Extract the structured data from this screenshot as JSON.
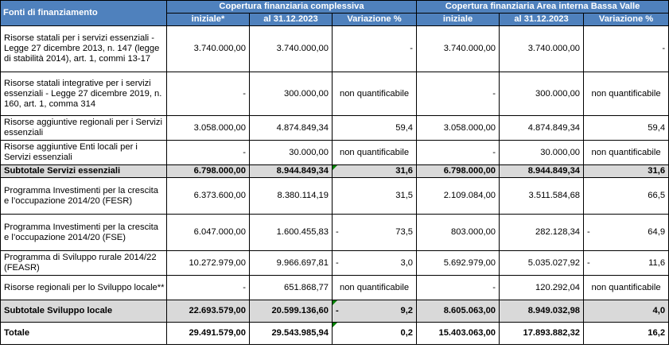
{
  "header": {
    "fonti": "Fonti di finanziamento",
    "group1": "Copertura finanziaria complessiva",
    "group2": "Copertura finanziaria Area interna Bassa Valle",
    "col_iniziale": "iniziale*",
    "col_al": "al 31.12.2023",
    "col_var": "Variazione %",
    "col_iniziale2": "iniziale",
    "col_al2": "al 31.12.2023",
    "col_var2": "Variazione %"
  },
  "rows": [
    {
      "label": "Risorse statali per i servizi essenziali - Legge 27 dicembre 2013, n. 147 (legge di stabilità 2014), art. 1, commi 13-17",
      "c1": "3.740.000,00",
      "c2": "3.740.000,00",
      "c3": "-",
      "c4": "3.740.000,00",
      "c5": "3.740.000,00",
      "c6": "-"
    },
    {
      "label": "Risorse statali integrative per i servizi essenziali - Legge 27 dicembre 2019, n. 160, art. 1, comma 314",
      "c1": "-",
      "c2": "300.000,00",
      "c3": "non quantificabile",
      "c4": "-",
      "c5": "300.000,00",
      "c6": "non quantificabile"
    },
    {
      "label": "Risorse aggiuntive regionali per i Servizi essenziali",
      "c1": "3.058.000,00",
      "c2": "4.874.849,34",
      "c3": "59,4",
      "c4": "3.058.000,00",
      "c5": "4.874.849,34",
      "c6": "59,4"
    },
    {
      "label": "Risorse aggiuntive Enti locali per i Servizi essenziali",
      "c1": "-",
      "c2": "30.000,00",
      "c3": "non quantificabile",
      "c4": "-",
      "c5": "30.000,00",
      "c6": "non quantificabile"
    },
    {
      "label": "Subtotale Servizi essenziali",
      "c1": "6.798.000,00",
      "c2": "8.944.849,34",
      "c3": "31,6",
      "c4": "6.798.000,00",
      "c5": "8.944.849,34",
      "c6": "31,6"
    },
    {
      "label": "Programma Investimenti per la crescita e l’occupazione 2014/20 (FESR)",
      "c1": "6.373.600,00",
      "c2": "8.380.114,19",
      "c3": "31,5",
      "c4": "2.109.084,00",
      "c5": "3.511.584,68",
      "c6": "66,5"
    },
    {
      "label": "Programma Investimenti per la crescita e l’occupazione 2014/20 (FSE)",
      "c1": "6.047.000,00",
      "c2": "1.600.455,83",
      "c3_sign": "-",
      "c3": "73,5",
      "c4": "803.000,00",
      "c5": "282.128,34",
      "c6_sign": "-",
      "c6": "64,9"
    },
    {
      "label": "Programma di Sviluppo rurale 2014/22 (FEASR)",
      "c1": "10.272.979,00",
      "c2": "9.966.697,81",
      "c3_sign": "-",
      "c3": "3,0",
      "c4": "5.692.979,00",
      "c5": "5.035.027,92",
      "c6_sign": "-",
      "c6": "11,6"
    },
    {
      "label": "Risorse regionali per lo Sviluppo locale**",
      "c1": "-",
      "c2": "651.868,77",
      "c3": "non quantificabile",
      "c4": "-",
      "c5": "120.292,04",
      "c6": "non quantificabile"
    },
    {
      "label": "Subtotale Sviluppo locale",
      "c1": "22.693.579,00",
      "c2": "20.599.136,60",
      "c3_sign": "-",
      "c3": "9,2",
      "c4": "8.605.063,00",
      "c5": "8.949.032,98",
      "c6": "4,0"
    },
    {
      "label": "Totale",
      "c1": "29.491.579,00",
      "c2": "29.543.985,94",
      "c3": "0,2",
      "c4": "15.403.063,00",
      "c5": "17.893.882,32",
      "c6": "16,2"
    }
  ]
}
